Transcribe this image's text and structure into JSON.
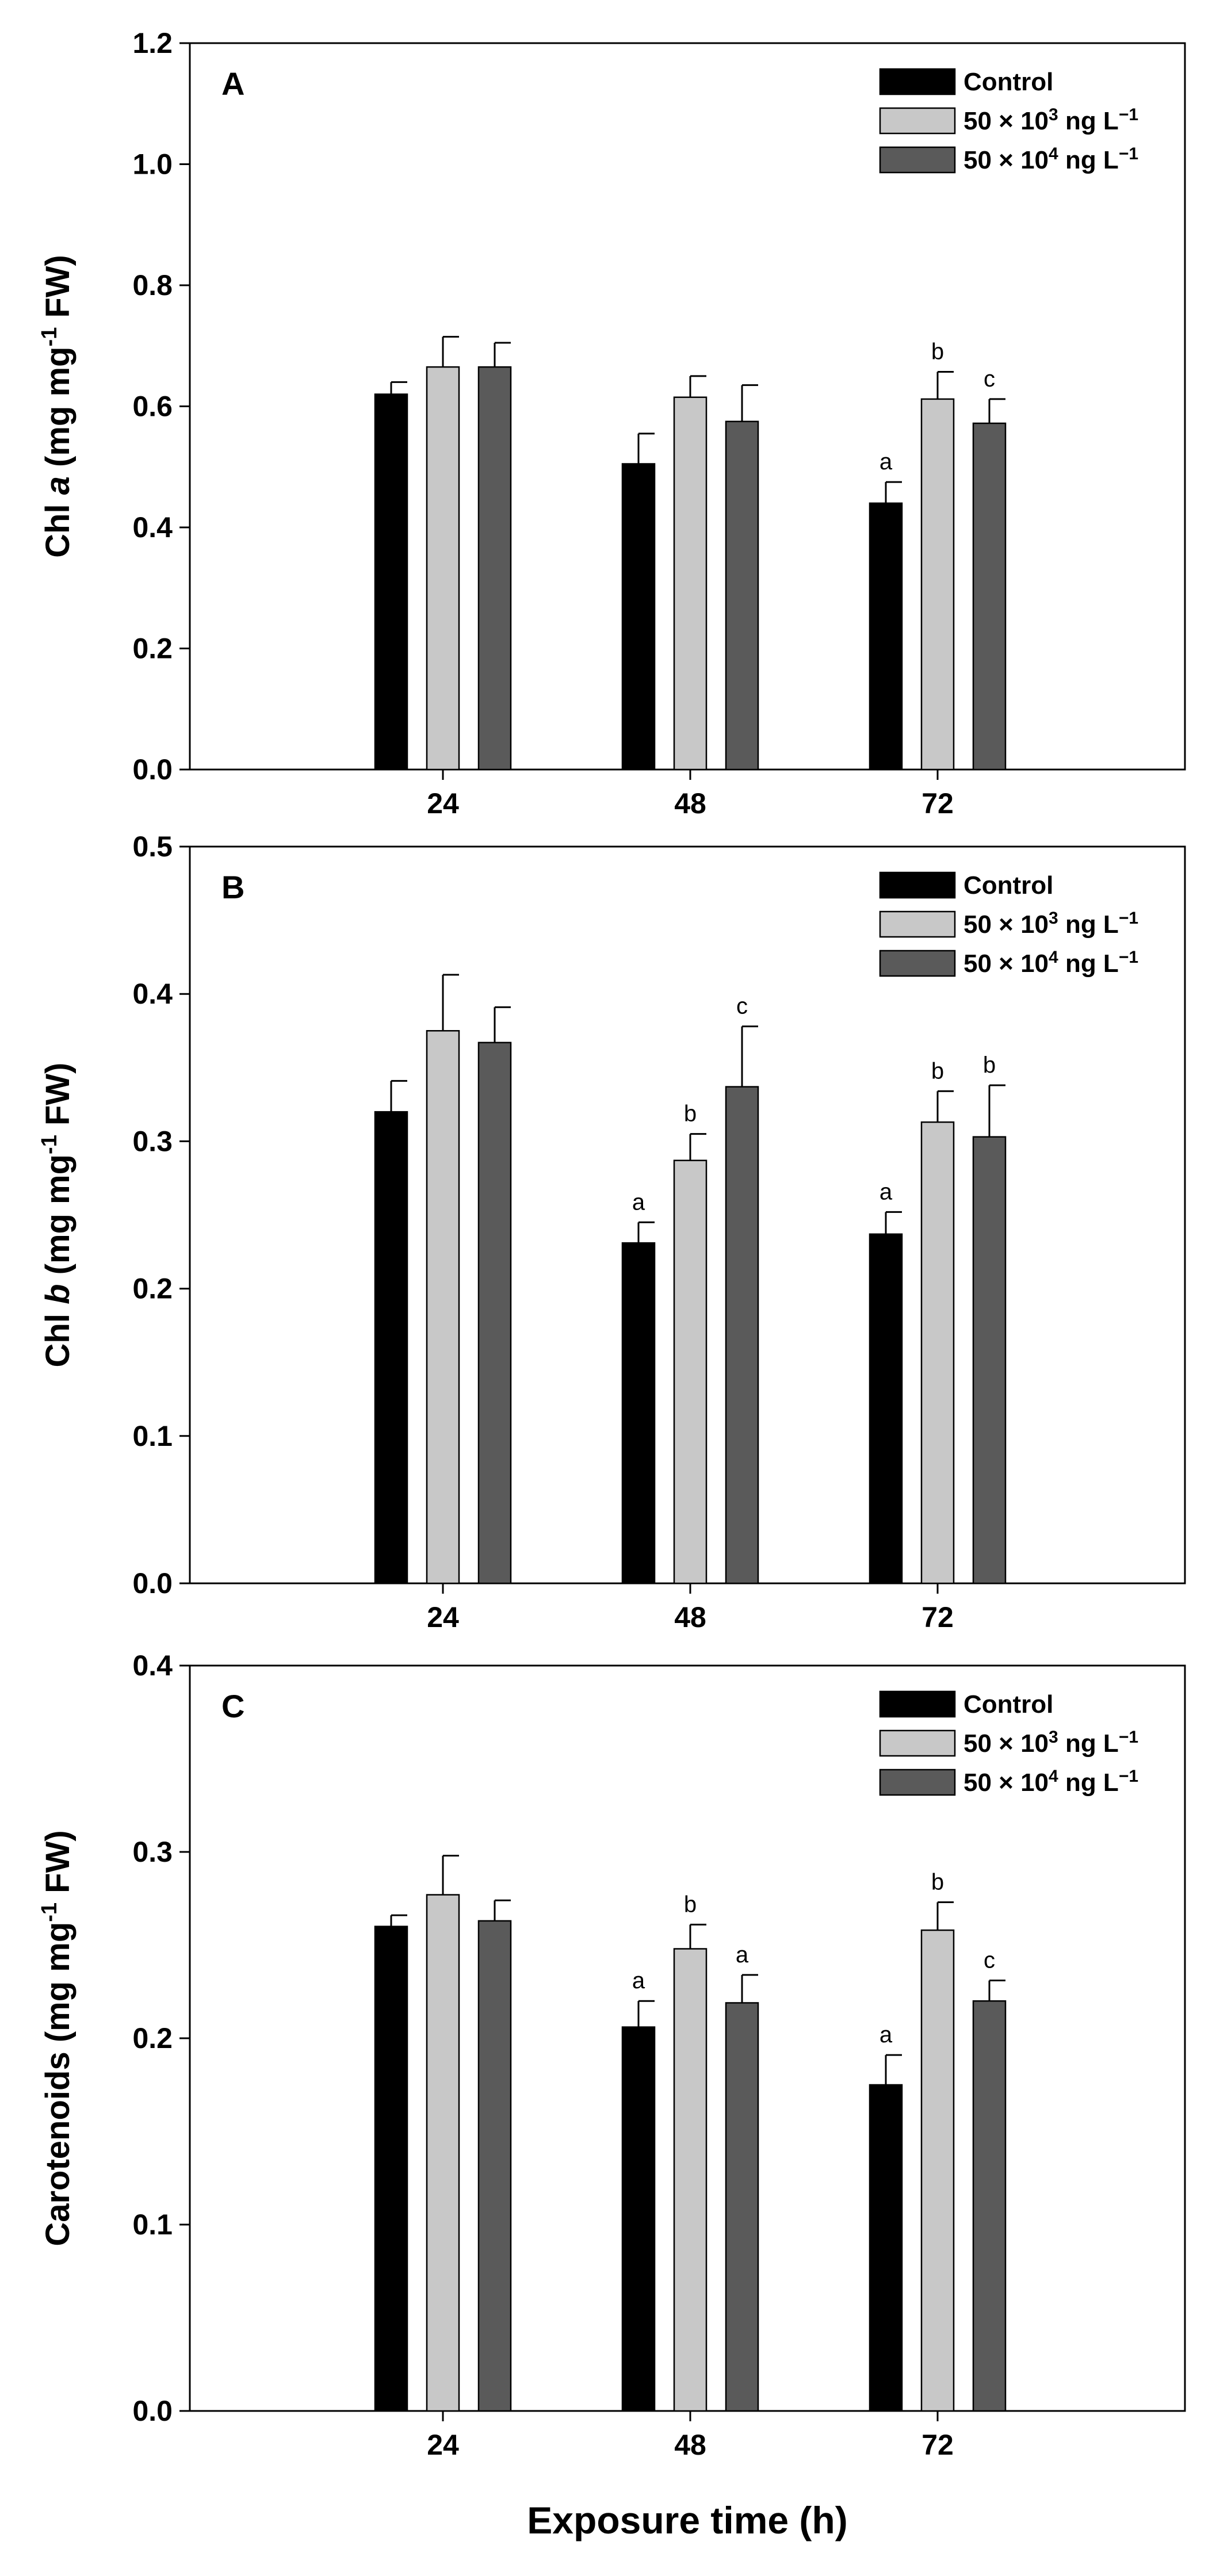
{
  "colors": {
    "control": "#000000",
    "low": "#c8c8c8",
    "high": "#5a5a5a"
  },
  "chart_data": [
    {
      "type": "bar",
      "panel_letter": "A",
      "ylabel": {
        "pre": "Chl ",
        "italic": "a",
        "post": " (mg mg",
        "sup": "-1",
        "end": " FW)"
      },
      "ylim": [
        0,
        1.2
      ],
      "yticks": [
        "0.0",
        "0.2",
        "0.4",
        "0.6",
        "0.8",
        "1.0",
        "1.2"
      ],
      "categories": [
        "24",
        "48",
        "72"
      ],
      "legend": [
        {
          "base": "Control",
          "sup": "",
          "tail": ""
        },
        {
          "base": "50 × 10",
          "sup": "3",
          "tail": " ng L",
          "sup2": "−1"
        },
        {
          "base": "50 × 10",
          "sup": "4",
          "tail": " ng L",
          "sup2": "−1"
        }
      ],
      "series": [
        {
          "name": "Control",
          "values": [
            0.62,
            0.505,
            0.44
          ],
          "errors": [
            0.02,
            0.05,
            0.035
          ],
          "sig": [
            "",
            "",
            "a"
          ]
        },
        {
          "name": "50 × 10³ ng L⁻¹",
          "values": [
            0.665,
            0.615,
            0.612
          ],
          "errors": [
            0.05,
            0.035,
            0.045
          ],
          "sig": [
            "",
            "",
            "b"
          ]
        },
        {
          "name": "50 × 10⁴ ng L⁻¹",
          "values": [
            0.665,
            0.575,
            0.572
          ],
          "errors": [
            0.04,
            0.06,
            0.04
          ],
          "sig": [
            "",
            "",
            "c"
          ]
        }
      ]
    },
    {
      "type": "bar",
      "panel_letter": "B",
      "ylabel": {
        "pre": "Chl ",
        "italic": "b",
        "post": " (mg mg",
        "sup": "-1",
        "end": " FW)"
      },
      "ylim": [
        0,
        0.5
      ],
      "yticks": [
        "0.0",
        "0.1",
        "0.2",
        "0.3",
        "0.4",
        "0.5"
      ],
      "categories": [
        "24",
        "48",
        "72"
      ],
      "legend": [
        {
          "base": "Control",
          "sup": "",
          "tail": ""
        },
        {
          "base": "50 × 10",
          "sup": "3",
          "tail": " ng L",
          "sup2": "−1"
        },
        {
          "base": "50 × 10",
          "sup": "4",
          "tail": " ng L",
          "sup2": "−1"
        }
      ],
      "series": [
        {
          "name": "Control",
          "values": [
            0.32,
            0.231,
            0.237
          ],
          "errors": [
            0.021,
            0.014,
            0.015
          ],
          "sig": [
            "",
            "a",
            "a"
          ]
        },
        {
          "name": "50 × 10³ ng L⁻¹",
          "values": [
            0.375,
            0.287,
            0.313
          ],
          "errors": [
            0.038,
            0.018,
            0.021
          ],
          "sig": [
            "",
            "b",
            "b"
          ]
        },
        {
          "name": "50 × 10⁴ ng L⁻¹",
          "values": [
            0.367,
            0.337,
            0.303
          ],
          "errors": [
            0.024,
            0.041,
            0.035
          ],
          "sig": [
            "",
            "c",
            "b"
          ]
        }
      ]
    },
    {
      "type": "bar",
      "panel_letter": "C",
      "ylabel": {
        "pre": "Carotenoids (mg mg",
        "italic": "",
        "post": "",
        "sup": "-1",
        "end": " FW)"
      },
      "ylim": [
        0,
        0.4
      ],
      "yticks": [
        "0.0",
        "0.1",
        "0.2",
        "0.3",
        "0.4"
      ],
      "categories": [
        "24",
        "48",
        "72"
      ],
      "xlabel": "Exposure time (h)",
      "legend": [
        {
          "base": "Control",
          "sup": "",
          "tail": ""
        },
        {
          "base": "50 × 10",
          "sup": "3",
          "tail": " ng L",
          "sup2": "−1"
        },
        {
          "base": "50 × 10",
          "sup": "4",
          "tail": " ng L",
          "sup2": "−1"
        }
      ],
      "series": [
        {
          "name": "Control",
          "values": [
            0.26,
            0.206,
            0.175
          ],
          "errors": [
            0.006,
            0.014,
            0.016
          ],
          "sig": [
            "",
            "a",
            "a"
          ]
        },
        {
          "name": "50 × 10³ ng L⁻¹",
          "values": [
            0.277,
            0.248,
            0.258
          ],
          "errors": [
            0.021,
            0.013,
            0.015
          ],
          "sig": [
            "",
            "b",
            "b"
          ]
        },
        {
          "name": "50 × 10⁴ ng L⁻¹",
          "values": [
            0.263,
            0.219,
            0.22
          ],
          "errors": [
            0.011,
            0.015,
            0.011
          ],
          "sig": [
            "",
            "a",
            "c"
          ]
        }
      ]
    }
  ]
}
